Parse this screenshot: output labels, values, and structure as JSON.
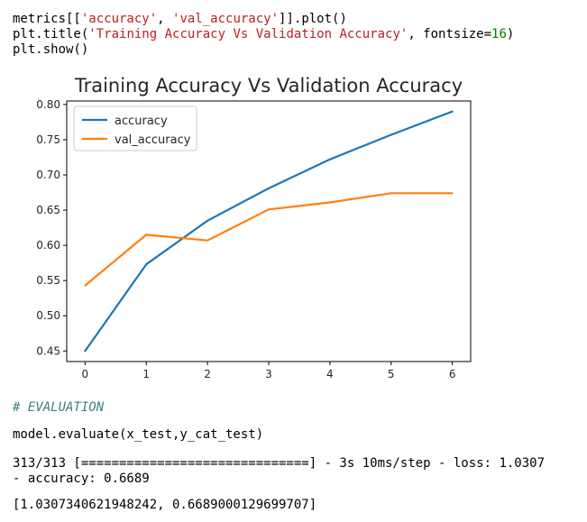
{
  "cell1": {
    "line1_a": "metrics[[",
    "line1_s1": "'accuracy'",
    "line1_b": ", ",
    "line1_s2": "'val_accuracy'",
    "line1_c": "]].plot()",
    "line2_a": "plt.title(",
    "line2_s": "'Training Accuracy Vs Validation Accuracy'",
    "line2_b": ", fontsize=",
    "line2_n": "16",
    "line2_c": ")",
    "line3": "plt.show()"
  },
  "cell2": {
    "comment": "# EVALUATION",
    "code": "model.evaluate(x_test,y_cat_test)"
  },
  "output": {
    "progress_line": "313/313 [==============================] - 3s 10ms/step - loss: 1.0307",
    "accuracy_line": "- accuracy: 0.6689",
    "result": "[1.0307340621948242, 0.6689000129699707]"
  },
  "chart_data": {
    "type": "line",
    "title": "Training Accuracy Vs Validation Accuracy",
    "x": [
      0,
      1,
      2,
      3,
      4,
      5,
      6
    ],
    "series": [
      {
        "name": "accuracy",
        "color": "#1f77b4",
        "values": [
          0.45,
          0.573,
          0.635,
          0.681,
          0.722,
          0.757,
          0.79
        ]
      },
      {
        "name": "val_accuracy",
        "color": "#ff7f0e",
        "values": [
          0.543,
          0.615,
          0.607,
          0.651,
          0.661,
          0.674,
          0.674
        ]
      }
    ],
    "xticks": [
      "0",
      "1",
      "2",
      "3",
      "4",
      "5",
      "6"
    ],
    "yticks": [
      "0.45",
      "0.50",
      "0.55",
      "0.60",
      "0.65",
      "0.70",
      "0.75",
      "0.80"
    ],
    "ytick_values": [
      0.45,
      0.5,
      0.55,
      0.6,
      0.65,
      0.7,
      0.75,
      0.8
    ],
    "xlim": [
      -0.3,
      6.3
    ],
    "ylim": [
      0.435,
      0.805
    ],
    "legend_position": "upper-left",
    "grid": false
  }
}
